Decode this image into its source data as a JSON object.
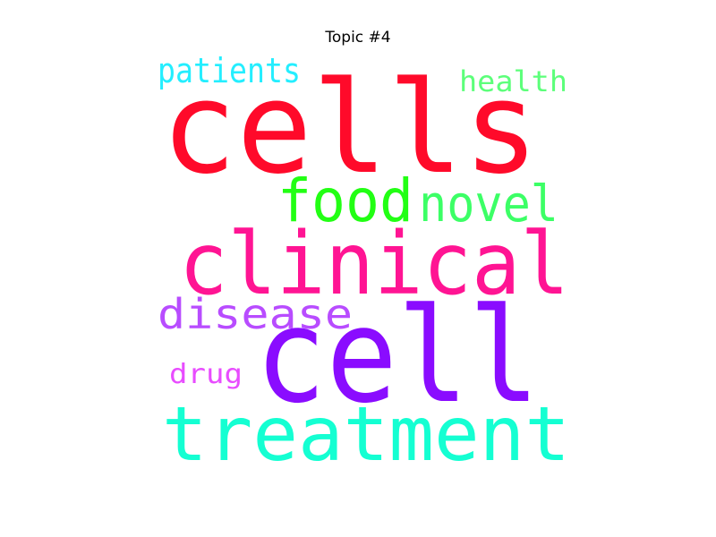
{
  "chart_data": {
    "type": "wordcloud",
    "title": "Topic #4",
    "words": [
      {
        "text": "cells",
        "weight": 1.0,
        "color": "#ff0a2a"
      },
      {
        "text": "cell",
        "weight": 0.95,
        "color": "#8a0cff"
      },
      {
        "text": "clinical",
        "weight": 0.78,
        "color": "#ff1493"
      },
      {
        "text": "treatment",
        "weight": 0.68,
        "color": "#14ffd2"
      },
      {
        "text": "food",
        "weight": 0.5,
        "color": "#22ff14"
      },
      {
        "text": "novel",
        "weight": 0.42,
        "color": "#3cff66"
      },
      {
        "text": "disease",
        "weight": 0.38,
        "color": "#b84cff"
      },
      {
        "text": "patients",
        "weight": 0.32,
        "color": "#24eeff"
      },
      {
        "text": "health",
        "weight": 0.28,
        "color": "#5cff7a"
      },
      {
        "text": "drug",
        "weight": 0.27,
        "color": "#e84cff"
      }
    ]
  }
}
